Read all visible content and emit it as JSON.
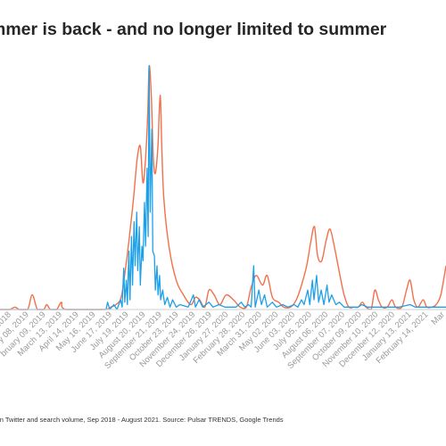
{
  "title": "mmer is back - and no longer limited to summer",
  "footnote": "r on Twitter and search volume, Sep 2018 - August 2021. Source: Pulsar TRENDS, Google Trends",
  "colors": {
    "twitter_line": "#1ea0e8",
    "search_line": "#f2704a",
    "baseline": "#cfcfcf",
    "tick_label": "#9a9a9a"
  },
  "chart_data": {
    "type": "line",
    "title": "mmer is back - and no longer limited to summer",
    "xlabel": "",
    "ylabel": "",
    "ylim": [
      0,
      100
    ],
    "grid": false,
    "x_range": [
      "2018-11-13",
      "2021-03-20"
    ],
    "tick_labels": [
      "2018",
      "y 08, 2019",
      "bruary 09, 2019",
      "March 13, 2019",
      "April 14, 2019",
      "May 16, 2019",
      "June 17, 2019",
      "July 19, 2019",
      "August 20, 2019",
      "September 21, 2019",
      "October 23, 2019",
      "November 24, 2019",
      "December 26, 2019",
      "January 27, 2020",
      "February 28, 2020",
      "March 31, 2020",
      "May 02, 2020",
      "June 03, 2020",
      "July 05, 2020",
      "August 06, 2020",
      "September 07, 2020",
      "October 09, 2020",
      "November 10, 2020",
      "December 12, 2020",
      "January 13, 2021",
      "February 14, 2021",
      "Mar"
    ],
    "tick_dates": [
      "2018-12-05",
      "2019-01-08",
      "2019-02-09",
      "2019-03-13",
      "2019-04-14",
      "2019-05-16",
      "2019-06-17",
      "2019-07-19",
      "2019-08-20",
      "2019-09-21",
      "2019-10-23",
      "2019-11-24",
      "2019-12-26",
      "2020-01-27",
      "2020-02-28",
      "2020-03-31",
      "2020-05-02",
      "2020-06-03",
      "2020-07-05",
      "2020-08-06",
      "2020-09-07",
      "2020-10-09",
      "2020-11-10",
      "2020-12-12",
      "2021-01-13",
      "2021-02-14",
      "2021-03-18"
    ],
    "series": [
      {
        "name": "",
        "color": "#f2704a",
        "points": [
          [
            "2018-11-13",
            0
          ],
          [
            "2018-12-01",
            0
          ],
          [
            "2018-12-12",
            1
          ],
          [
            "2018-12-20",
            0
          ],
          [
            "2019-01-05",
            0
          ],
          [
            "2019-01-14",
            6
          ],
          [
            "2019-01-24",
            0
          ],
          [
            "2019-02-05",
            0
          ],
          [
            "2019-02-11",
            2
          ],
          [
            "2019-02-18",
            0
          ],
          [
            "2019-03-02",
            0
          ],
          [
            "2019-03-11",
            3
          ],
          [
            "2019-03-20",
            0
          ],
          [
            "2019-06-01",
            0
          ],
          [
            "2019-06-14",
            1
          ],
          [
            "2019-06-24",
            2
          ],
          [
            "2019-07-04",
            5
          ],
          [
            "2019-07-12",
            16
          ],
          [
            "2019-07-20",
            30
          ],
          [
            "2019-07-28",
            46
          ],
          [
            "2019-08-04",
            62
          ],
          [
            "2019-08-10",
            67
          ],
          [
            "2019-08-15",
            52
          ],
          [
            "2019-08-20",
            62
          ],
          [
            "2019-08-24",
            79
          ],
          [
            "2019-08-27",
            100
          ],
          [
            "2019-08-31",
            88
          ],
          [
            "2019-09-04",
            62
          ],
          [
            "2019-09-08",
            56
          ],
          [
            "2019-09-13",
            68
          ],
          [
            "2019-09-17",
            88
          ],
          [
            "2019-09-20",
            69
          ],
          [
            "2019-09-24",
            46
          ],
          [
            "2019-10-04",
            26
          ],
          [
            "2019-10-18",
            12
          ],
          [
            "2019-11-01",
            6
          ],
          [
            "2019-11-15",
            2
          ],
          [
            "2019-11-24",
            5
          ],
          [
            "2019-12-02",
            4
          ],
          [
            "2019-12-12",
            1
          ],
          [
            "2019-12-20",
            8
          ],
          [
            "2019-12-30",
            6
          ],
          [
            "2020-01-10",
            2
          ],
          [
            "2020-01-22",
            6
          ],
          [
            "2020-02-05",
            4
          ],
          [
            "2020-02-18",
            1
          ],
          [
            "2020-03-01",
            1
          ],
          [
            "2020-03-10",
            9
          ],
          [
            "2020-03-20",
            14
          ],
          [
            "2020-04-01",
            10
          ],
          [
            "2020-04-10",
            14
          ],
          [
            "2020-04-20",
            5
          ],
          [
            "2020-05-02",
            3
          ],
          [
            "2020-05-12",
            1
          ],
          [
            "2020-05-25",
            1
          ],
          [
            "2020-06-05",
            4
          ],
          [
            "2020-06-15",
            10
          ],
          [
            "2020-06-25",
            18
          ],
          [
            "2020-07-03",
            28
          ],
          [
            "2020-07-10",
            34
          ],
          [
            "2020-07-16",
            22
          ],
          [
            "2020-07-24",
            20
          ],
          [
            "2020-08-01",
            28
          ],
          [
            "2020-08-09",
            33
          ],
          [
            "2020-08-18",
            25
          ],
          [
            "2020-08-28",
            14
          ],
          [
            "2020-09-05",
            6
          ],
          [
            "2020-09-14",
            1
          ],
          [
            "2020-09-24",
            1
          ],
          [
            "2020-10-02",
            1
          ],
          [
            "2020-10-10",
            3
          ],
          [
            "2020-10-17",
            1
          ],
          [
            "2020-10-27",
            0
          ],
          [
            "2020-11-03",
            8
          ],
          [
            "2020-11-10",
            4
          ],
          [
            "2020-11-17",
            1
          ],
          [
            "2020-11-27",
            1
          ],
          [
            "2020-12-06",
            4
          ],
          [
            "2020-12-13",
            1
          ],
          [
            "2020-12-25",
            1
          ],
          [
            "2021-01-03",
            8
          ],
          [
            "2021-01-10",
            12
          ],
          [
            "2021-01-17",
            4
          ],
          [
            "2021-01-25",
            1
          ],
          [
            "2021-02-04",
            4
          ],
          [
            "2021-02-11",
            1
          ],
          [
            "2021-02-21",
            1
          ],
          [
            "2021-03-01",
            2
          ],
          [
            "2021-03-10",
            6
          ],
          [
            "2021-03-20",
            18
          ]
        ]
      },
      {
        "name": "",
        "color": "#1ea0e8",
        "points": [
          [
            "2018-11-13",
            0
          ],
          [
            "2019-06-05",
            0
          ],
          [
            "2019-06-08",
            3
          ],
          [
            "2019-06-12",
            0
          ],
          [
            "2019-06-20",
            2
          ],
          [
            "2019-06-26",
            0
          ],
          [
            "2019-07-03",
            4
          ],
          [
            "2019-07-06",
            1
          ],
          [
            "2019-07-09",
            17
          ],
          [
            "2019-07-11",
            3
          ],
          [
            "2019-07-14",
            12
          ],
          [
            "2019-07-16",
            2
          ],
          [
            "2019-07-19",
            24
          ],
          [
            "2019-07-21",
            4
          ],
          [
            "2019-07-24",
            30
          ],
          [
            "2019-07-26",
            10
          ],
          [
            "2019-07-29",
            36
          ],
          [
            "2019-07-31",
            18
          ],
          [
            "2019-08-03",
            40
          ],
          [
            "2019-08-05",
            16
          ],
          [
            "2019-08-08",
            34
          ],
          [
            "2019-08-10",
            10
          ],
          [
            "2019-08-13",
            26
          ],
          [
            "2019-08-15",
            20
          ],
          [
            "2019-08-18",
            44
          ],
          [
            "2019-08-20",
            26
          ],
          [
            "2019-08-23",
            58
          ],
          [
            "2019-08-25",
            30
          ],
          [
            "2019-08-27",
            100
          ],
          [
            "2019-08-29",
            40
          ],
          [
            "2019-09-01",
            74
          ],
          [
            "2019-09-03",
            24
          ],
          [
            "2019-09-06",
            22
          ],
          [
            "2019-09-08",
            8
          ],
          [
            "2019-09-11",
            18
          ],
          [
            "2019-09-13",
            6
          ],
          [
            "2019-09-16",
            14
          ],
          [
            "2019-09-18",
            4
          ],
          [
            "2019-09-22",
            8
          ],
          [
            "2019-09-26",
            2
          ],
          [
            "2019-10-01",
            5
          ],
          [
            "2019-10-06",
            1
          ],
          [
            "2019-10-11",
            4
          ],
          [
            "2019-10-18",
            1
          ],
          [
            "2019-10-25",
            2
          ],
          [
            "2019-11-10",
            1
          ],
          [
            "2019-11-20",
            6
          ],
          [
            "2019-11-24",
            1
          ],
          [
            "2019-12-01",
            4
          ],
          [
            "2019-12-08",
            1
          ],
          [
            "2019-12-20",
            3
          ],
          [
            "2019-12-28",
            1
          ],
          [
            "2020-01-08",
            2
          ],
          [
            "2020-01-20",
            1
          ],
          [
            "2020-02-10",
            1
          ],
          [
            "2020-02-20",
            3
          ],
          [
            "2020-02-27",
            1
          ],
          [
            "2020-03-05",
            2
          ],
          [
            "2020-03-10",
            1
          ],
          [
            "2020-03-15",
            18
          ],
          [
            "2020-03-18",
            1
          ],
          [
            "2020-03-25",
            8
          ],
          [
            "2020-03-30",
            2
          ],
          [
            "2020-04-05",
            6
          ],
          [
            "2020-04-10",
            1
          ],
          [
            "2020-04-20",
            3
          ],
          [
            "2020-04-28",
            1
          ],
          [
            "2020-05-10",
            2
          ],
          [
            "2020-05-20",
            1
          ],
          [
            "2020-06-01",
            2
          ],
          [
            "2020-06-08",
            1
          ],
          [
            "2020-06-15",
            4
          ],
          [
            "2020-06-20",
            2
          ],
          [
            "2020-06-27",
            8
          ],
          [
            "2020-07-01",
            2
          ],
          [
            "2020-07-06",
            12
          ],
          [
            "2020-07-09",
            4
          ],
          [
            "2020-07-14",
            14
          ],
          [
            "2020-07-18",
            3
          ],
          [
            "2020-07-23",
            8
          ],
          [
            "2020-07-28",
            2
          ],
          [
            "2020-08-03",
            10
          ],
          [
            "2020-08-07",
            3
          ],
          [
            "2020-08-12",
            6
          ],
          [
            "2020-08-20",
            2
          ],
          [
            "2020-08-27",
            3
          ],
          [
            "2020-09-05",
            1
          ],
          [
            "2020-09-20",
            1
          ],
          [
            "2020-10-02",
            1
          ],
          [
            "2020-10-09",
            2
          ],
          [
            "2020-10-20",
            1
          ],
          [
            "2020-11-20",
            1
          ],
          [
            "2020-12-20",
            1
          ],
          [
            "2021-01-10",
            2
          ],
          [
            "2021-01-20",
            1
          ],
          [
            "2021-02-10",
            1
          ],
          [
            "2021-03-10",
            1
          ],
          [
            "2021-03-20",
            1
          ]
        ]
      }
    ]
  }
}
